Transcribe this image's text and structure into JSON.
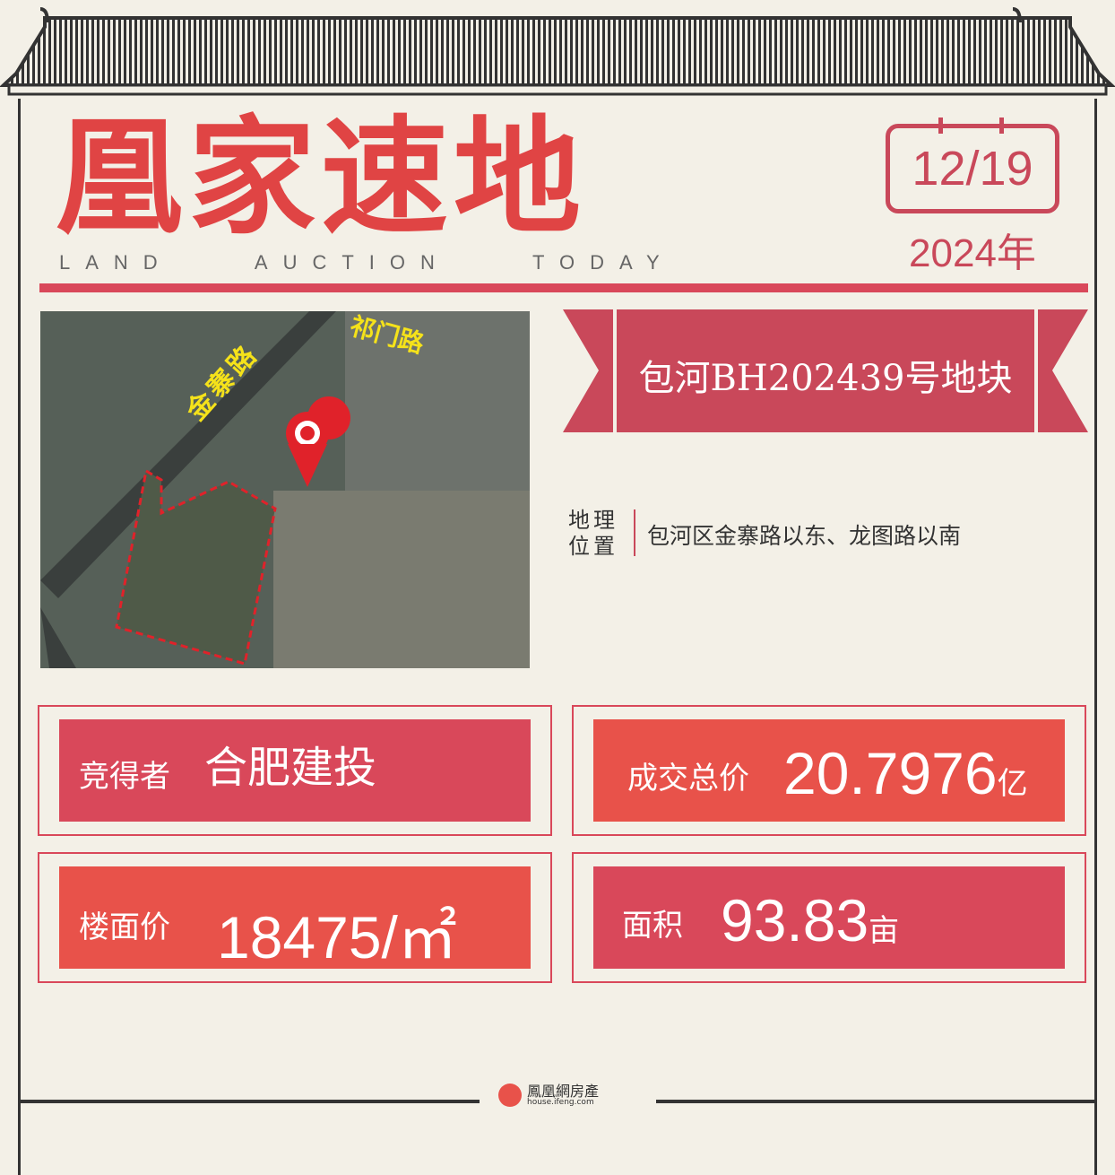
{
  "header": {
    "title": "凰家速地",
    "subtitle": "LAND    AUCTION    TODAY",
    "date": "12/19",
    "year": "2024年"
  },
  "map": {
    "road_labels": [
      "金寨路",
      "祁门路"
    ],
    "icon": "location-pin-icon"
  },
  "plot": {
    "name": "包河BH202439号地块",
    "location_label": "地理位置",
    "location": "包河区金寨路以东、龙图路以南"
  },
  "stats": [
    {
      "label": "竞得者",
      "value": "合肥建投",
      "unit": ""
    },
    {
      "label": "成交总价",
      "value": "20.7976",
      "unit": "亿"
    },
    {
      "label": "楼面价",
      "value": "18475/㎡",
      "unit": ""
    },
    {
      "label": "面积",
      "value": "93.83",
      "unit": "亩"
    }
  ],
  "footer": {
    "brand": "鳳凰網房產",
    "url": "house.ifeng.com"
  },
  "colors": {
    "accent": "#d9485a",
    "accent_orange": "#e8524a",
    "bg": "#f3f0e7"
  }
}
